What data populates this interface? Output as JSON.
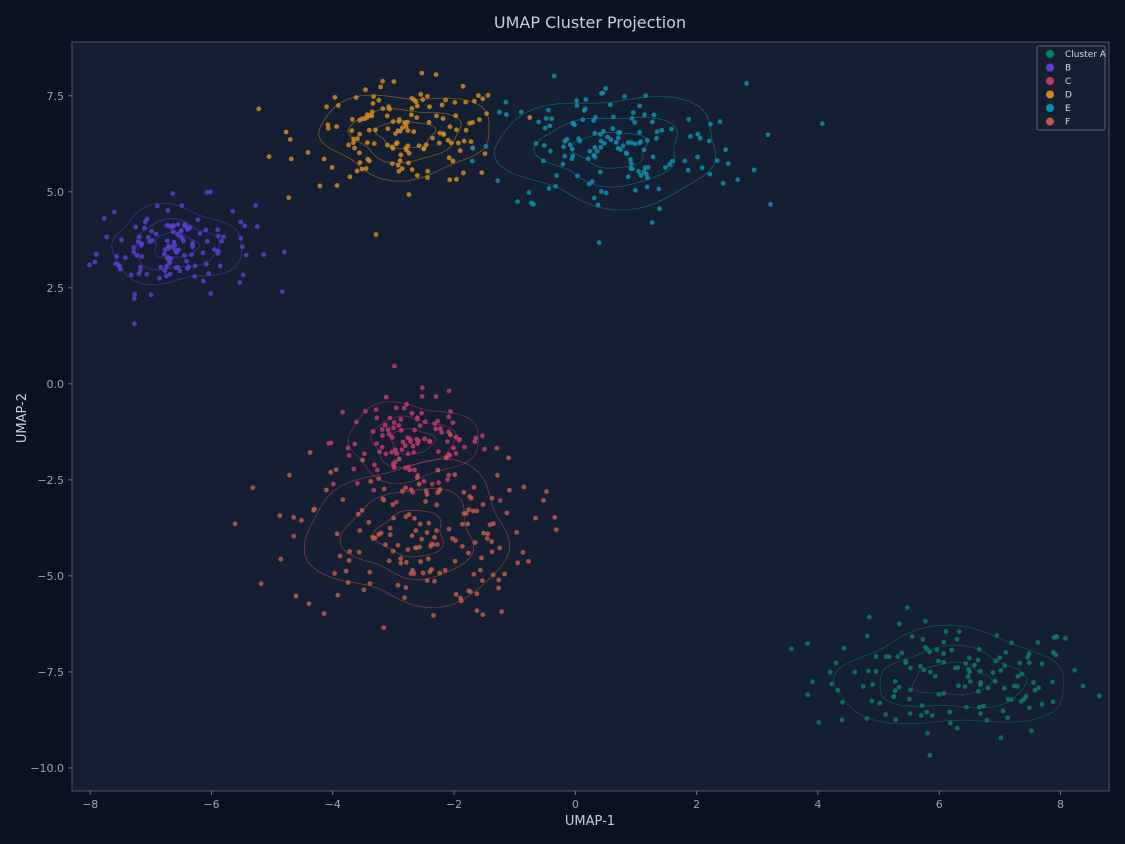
{
  "chart_data": {
    "type": "scatter",
    "title": "UMAP Cluster Projection",
    "xlabel": "UMAP-1",
    "ylabel": "UMAP-2",
    "xlim": [
      -8.3,
      8.8
    ],
    "ylim": [
      -10.6,
      8.9
    ],
    "x_ticks": [
      -8,
      -6,
      -4,
      -2,
      0,
      2,
      4,
      6,
      8
    ],
    "y_ticks": [
      7.5,
      5.0,
      2.5,
      0.0,
      -2.5,
      -5.0,
      -7.5,
      -10.0
    ],
    "x_tick_labels": [
      "−8",
      "−6",
      "−4",
      "−2",
      "0",
      "2",
      "4",
      "6",
      "8"
    ],
    "y_tick_labels": [
      "7.5",
      "5.0",
      "2.5",
      "0.0",
      "−2.5",
      "−5.0",
      "−7.5",
      "−10.0"
    ],
    "grid": false,
    "legend_position": "top-right",
    "density_contours": true,
    "series": [
      {
        "name": "Cluster A",
        "color": "#0e7a68",
        "center": [
          6.2,
          -7.7
        ],
        "spread": [
          1.15,
          0.75
        ],
        "count": 140
      },
      {
        "name": "B",
        "color": "#5a3fd0",
        "center": [
          -6.6,
          3.6
        ],
        "spread": [
          0.65,
          0.6
        ],
        "count": 130
      },
      {
        "name": "C",
        "color": "#c0396b",
        "center": [
          -2.7,
          -1.5
        ],
        "spread": [
          0.65,
          0.6
        ],
        "count": 110
      },
      {
        "name": "D",
        "color": "#d18a1e",
        "center": [
          -2.8,
          6.5
        ],
        "spread": [
          0.85,
          0.65
        ],
        "count": 150
      },
      {
        "name": "E",
        "color": "#0d8fae",
        "center": [
          0.6,
          6.1
        ],
        "spread": [
          1.1,
          0.85
        ],
        "count": 150
      },
      {
        "name": "F",
        "color": "#c0594a",
        "center": [
          -2.7,
          -3.9
        ],
        "spread": [
          1.0,
          1.1
        ],
        "count": 170
      }
    ]
  }
}
